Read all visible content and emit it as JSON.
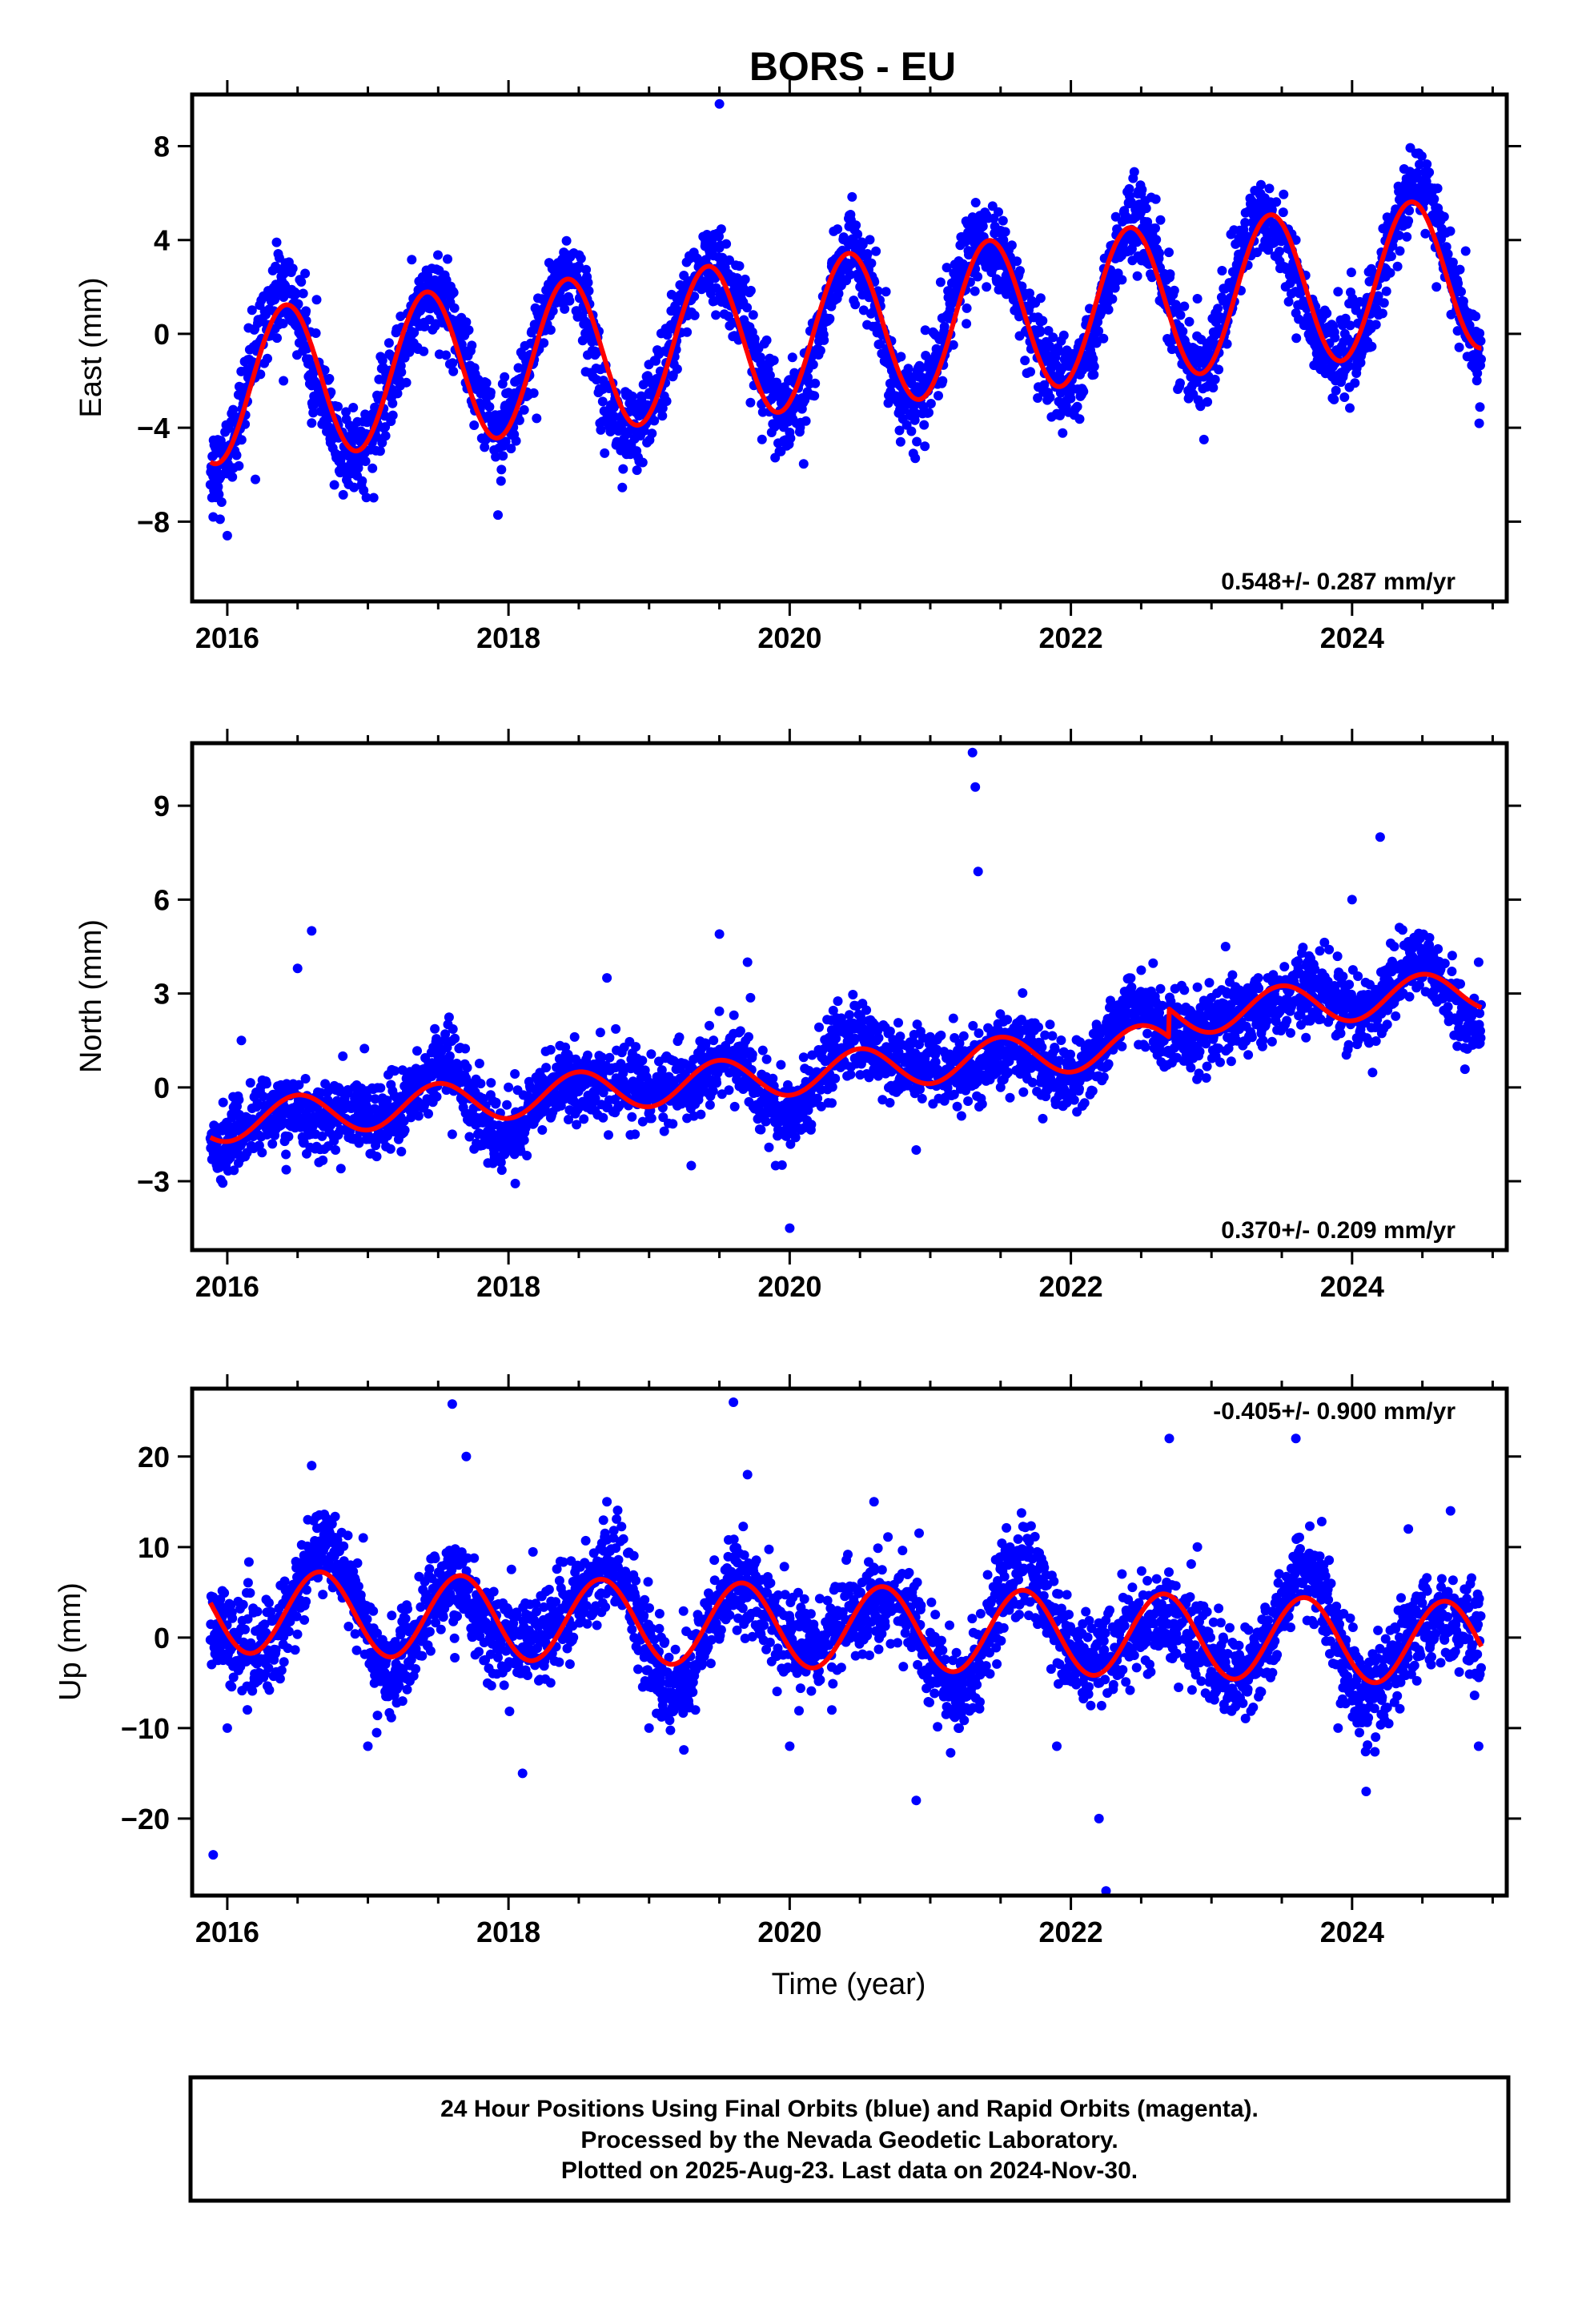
{
  "title": "BORS - EU",
  "xlabel": "Time (year)",
  "footer": {
    "line1": "24 Hour Positions Using Final Orbits (blue) and Rapid Orbits (magenta).",
    "line2": "Processed by the Nevada Geodetic Laboratory.",
    "line3": "Plotted on 2025-Aug-23. Last data on 2024-Nov-30."
  },
  "colors": {
    "points": "#0000ff",
    "fit": "#ff0000",
    "frame": "#000000"
  },
  "chart_data": [
    {
      "type": "scatter",
      "title": "",
      "ylabel": "East (mm)",
      "xlim": [
        2015.75,
        2025.1
      ],
      "ylim": [
        -11.4,
        10.2
      ],
      "x_ticks": [
        2016,
        2018,
        2020,
        2022,
        2024
      ],
      "y_ticks": [
        -8,
        -4,
        0,
        4,
        8
      ],
      "rate_label": "0.548+/- 0.287 mm/yr",
      "rate_position": "bottom-right",
      "data_start": 2015.88,
      "data_end": 2024.92,
      "series": [
        {
          "name": "Final Orbits (blue)",
          "marker": "dot",
          "sample_points": [
            [
              2015.9,
              -7.8
            ],
            [
              2016.0,
              -8.6
            ],
            [
              2016.2,
              -6.2
            ],
            [
              2016.4,
              -2.0
            ],
            [
              2016.6,
              -3.8
            ],
            [
              2016.9,
              -5.8
            ],
            [
              2017.2,
              -1.5
            ],
            [
              2017.4,
              2.0
            ],
            [
              2017.7,
              0.5
            ],
            [
              2018.0,
              -2.5
            ],
            [
              2018.2,
              -3.6
            ],
            [
              2018.4,
              2.0
            ],
            [
              2018.6,
              0.8
            ],
            [
              2019.0,
              -3.2
            ],
            [
              2019.2,
              -1.5
            ],
            [
              2019.4,
              4.0
            ],
            [
              2019.5,
              9.8
            ],
            [
              2019.8,
              -3.0
            ],
            [
              2020.0,
              -4.2
            ],
            [
              2020.3,
              3.0
            ],
            [
              2020.5,
              2.0
            ],
            [
              2020.9,
              -1.8
            ],
            [
              2021.1,
              -0.8
            ],
            [
              2021.4,
              2.0
            ],
            [
              2021.6,
              1.0
            ],
            [
              2021.9,
              -3.4
            ],
            [
              2022.1,
              -0.5
            ],
            [
              2022.4,
              3.5
            ],
            [
              2022.6,
              4.5
            ],
            [
              2022.9,
              1.5
            ],
            [
              2023.2,
              2.8
            ],
            [
              2023.4,
              5.5
            ],
            [
              2023.6,
              4.0
            ],
            [
              2023.9,
              1.8
            ],
            [
              2024.1,
              1.0
            ],
            [
              2024.4,
              6.0
            ],
            [
              2024.6,
              2.0
            ],
            [
              2024.9,
              -1.0
            ]
          ]
        },
        {
          "name": "Model fit (red)",
          "model": {
            "t0": 2020.0,
            "offset": -0.05,
            "rate": 0.548,
            "annual_amplitude": 3.25,
            "annual_peak": 2016.42
          }
        }
      ]
    },
    {
      "type": "scatter",
      "title": "",
      "ylabel": "North (mm)",
      "xlim": [
        2015.75,
        2025.1
      ],
      "ylim": [
        -5.2,
        11.0
      ],
      "x_ticks": [
        2016,
        2018,
        2020,
        2022,
        2024
      ],
      "y_ticks": [
        -3,
        0,
        3,
        6,
        9
      ],
      "rate_label": "0.370+/- 0.209 mm/yr",
      "rate_position": "bottom-right",
      "data_start": 2015.88,
      "data_end": 2024.92,
      "series": [
        {
          "name": "Final Orbits (blue)",
          "marker": "dot",
          "sample_points": [
            [
              2015.9,
              -1.8
            ],
            [
              2016.1,
              1.5
            ],
            [
              2016.5,
              3.8
            ],
            [
              2016.6,
              5.0
            ],
            [
              2016.9,
              -1.2
            ],
            [
              2017.3,
              0.5
            ],
            [
              2017.6,
              -1.5
            ],
            [
              2018.0,
              0.0
            ],
            [
              2018.3,
              1.2
            ],
            [
              2018.7,
              3.5
            ],
            [
              2018.9,
              -1.5
            ],
            [
              2019.3,
              -2.5
            ],
            [
              2019.5,
              4.9
            ],
            [
              2019.7,
              4.0
            ],
            [
              2019.9,
              -2.5
            ],
            [
              2020.0,
              -4.5
            ],
            [
              2020.3,
              -0.5
            ],
            [
              2020.6,
              1.5
            ],
            [
              2020.9,
              -2.0
            ],
            [
              2021.2,
              0.5
            ],
            [
              2021.3,
              10.7
            ],
            [
              2021.32,
              9.6
            ],
            [
              2021.34,
              6.9
            ],
            [
              2021.5,
              0.0
            ],
            [
              2021.8,
              -1.0
            ],
            [
              2022.0,
              0.5
            ],
            [
              2022.3,
              1.2
            ],
            [
              2022.6,
              1.5
            ],
            [
              2022.9,
              3.2
            ],
            [
              2023.1,
              4.5
            ],
            [
              2023.4,
              3.5
            ],
            [
              2023.7,
              3.8
            ],
            [
              2024.0,
              6.0
            ],
            [
              2024.2,
              8.0
            ],
            [
              2024.3,
              4.5
            ],
            [
              2024.6,
              3.5
            ],
            [
              2024.9,
              4.0
            ]
          ]
        },
        {
          "name": "Model fit (red)",
          "model": {
            "t0": 2020.0,
            "offset": 0.4,
            "rate": 0.37,
            "annual_amplitude": 0.65,
            "annual_peak": 2016.5
          },
          "step": {
            "epoch": 2022.7,
            "size": 0.9
          }
        }
      ]
    },
    {
      "type": "scatter",
      "title": "",
      "ylabel": "Up (mm)",
      "xlim": [
        2015.75,
        2025.1
      ],
      "ylim": [
        -28.5,
        27.5
      ],
      "x_ticks": [
        2016,
        2018,
        2020,
        2022,
        2024
      ],
      "y_ticks": [
        -20,
        -10,
        0,
        10,
        20
      ],
      "rate_label": "-0.405+/- 0.900 mm/yr",
      "rate_position": "top-right",
      "data_start": 2015.88,
      "data_end": 2024.92,
      "series": [
        {
          "name": "Final Orbits (blue)",
          "marker": "dot",
          "sample_points": [
            [
              2015.9,
              -24.0
            ],
            [
              2016.0,
              -10.0
            ],
            [
              2016.2,
              -5.0
            ],
            [
              2016.6,
              19.0
            ],
            [
              2017.0,
              -12.0
            ],
            [
              2017.2,
              -5.0
            ],
            [
              2017.6,
              25.8
            ],
            [
              2017.7,
              20.0
            ],
            [
              2018.1,
              -15.0
            ],
            [
              2018.3,
              -5.0
            ],
            [
              2018.7,
              15.0
            ],
            [
              2019.0,
              -10.0
            ],
            [
              2019.2,
              -5.0
            ],
            [
              2019.6,
              26.0
            ],
            [
              2019.7,
              18.0
            ],
            [
              2020.0,
              -12.0
            ],
            [
              2020.3,
              -8.0
            ],
            [
              2020.6,
              15.0
            ],
            [
              2020.9,
              -18.0
            ],
            [
              2021.2,
              -10.0
            ],
            [
              2021.5,
              8.0
            ],
            [
              2021.9,
              -12.0
            ],
            [
              2022.2,
              -20.0
            ],
            [
              2022.25,
              -28.0
            ],
            [
              2022.7,
              22.0
            ],
            [
              2022.9,
              10.0
            ],
            [
              2023.2,
              -5.0
            ],
            [
              2023.6,
              22.0
            ],
            [
              2023.9,
              -10.0
            ],
            [
              2024.1,
              -17.0
            ],
            [
              2024.4,
              12.0
            ],
            [
              2024.7,
              14.0
            ],
            [
              2024.9,
              -12.0
            ]
          ]
        },
        {
          "name": "Model fit (red)",
          "model": {
            "t0": 2020.0,
            "offset": 1.3,
            "rate": -0.405,
            "annual_amplitude": 4.6,
            "annual_peak": 2016.66
          }
        }
      ]
    }
  ]
}
